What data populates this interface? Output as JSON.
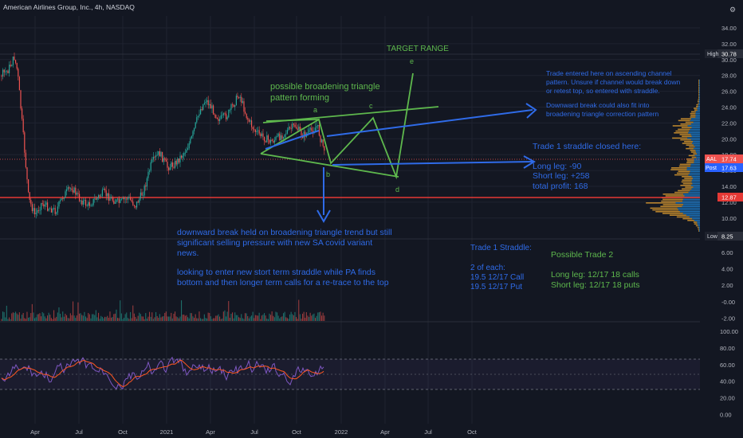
{
  "header": {
    "title": "American Airlines Group, Inc., 4h, NASDAQ"
  },
  "colors": {
    "background": "#131722",
    "grid": "#1f2330",
    "axis_text": "#b2b5be",
    "up": "#26a69a",
    "down": "#ef5350",
    "annotation_green": "#5eb84d",
    "annotation_blue": "#2f6be8",
    "rsi_line": "#7e57c2",
    "rsi_ma": "#ff5722",
    "high_marker": "#1e222d",
    "aal_badge": "#ef5350",
    "post_badge": "#2962ff",
    "level_red": "#e53935"
  },
  "price_axis": {
    "labels": [
      "34.00",
      "32.00",
      "30.00",
      "28.00",
      "26.00",
      "24.00",
      "22.00",
      "20.00",
      "18.00",
      "16.00",
      "14.00",
      "12.00",
      "10.00"
    ],
    "high_label": "High",
    "high_value": "30.78",
    "low_label": "Low",
    "low_value": "8.25",
    "aal_label": "AAL",
    "aal_value": "17.74",
    "post_label": "Post",
    "post_value": "17.63",
    "level_value": "12.87"
  },
  "volume_axis": {
    "labels": [
      "6.00",
      "4.00",
      "2.00",
      "-0.00",
      "-2.00"
    ]
  },
  "rsi_axis": {
    "labels": [
      "100.00",
      "80.00",
      "60.00",
      "40.00",
      "20.00",
      "0.00"
    ]
  },
  "time_axis": {
    "labels": [
      "Apr",
      "Jul",
      "Oct",
      "2021",
      "Apr",
      "Jul",
      "Oct",
      "2022",
      "Apr",
      "Jul",
      "Oct"
    ]
  },
  "annotations": {
    "target_range": "TARGET RANGE",
    "broadening": [
      "possible broadening triangle",
      "pattern forming"
    ],
    "point_a": "a",
    "point_b": "b",
    "point_c": "c",
    "point_d": "d",
    "point_e": "e",
    "trade_note": [
      "Trade entered here on ascending channel",
      "pattern. Unsure if channel would break down",
      "or retest top, so entered with straddle."
    ],
    "downward_note": [
      "Downward break could also fit into",
      "broadening triangle correction pattern"
    ],
    "trade1_closed": "Trade 1 straddle closed here:",
    "long_leg": "Long leg: -90",
    "short_leg": "Short leg: +258",
    "total_profit": "total profit: 168",
    "downward_held": [
      "downward break held on broadening triangle trend but still",
      "significant selling pressure with new SA covid variant",
      "news."
    ],
    "looking": [
      "looking to enter new stort term straddle while PA finds",
      "bottom and then longer term calls for a re-trace to the top"
    ],
    "trade1_straddle": [
      "Trade 1 Straddle:",
      "",
      "2 of each:",
      "19.5 12/17 Call",
      "19.5 12/17 Put"
    ],
    "possible_trade2": [
      "Possible Trade 2",
      "",
      "Long leg: 12/17 18 calls",
      "Short leg: 12/17 18 puts"
    ]
  }
}
